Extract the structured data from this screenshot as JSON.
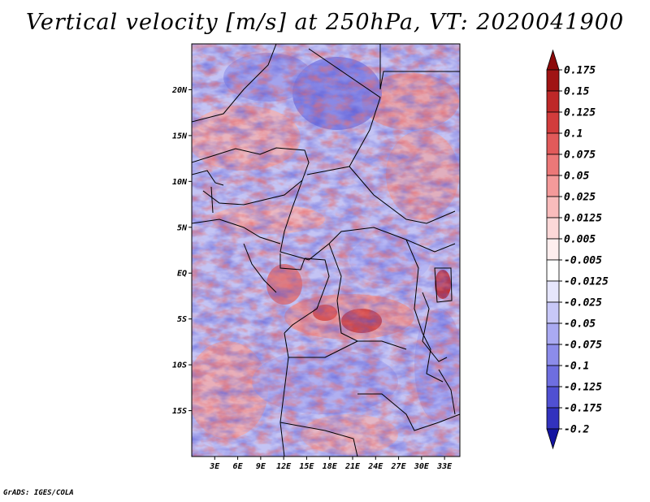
{
  "title": "Vertical velocity [m/s] at 250hPa, VT: 2020041900",
  "footer": "GrADS: IGES/COLA",
  "map": {
    "projection": "lat-lon",
    "lon_range": [
      0,
      35
    ],
    "lat_range": [
      -20,
      25
    ],
    "x_ticks": [
      {
        "value": 3,
        "label": "3E"
      },
      {
        "value": 6,
        "label": "6E"
      },
      {
        "value": 9,
        "label": "9E"
      },
      {
        "value": 12,
        "label": "12E"
      },
      {
        "value": 15,
        "label": "15E"
      },
      {
        "value": 18,
        "label": "18E"
      },
      {
        "value": 21,
        "label": "21E"
      },
      {
        "value": 24,
        "label": "24E"
      },
      {
        "value": 27,
        "label": "27E"
      },
      {
        "value": 30,
        "label": "30E"
      },
      {
        "value": 33,
        "label": "33E"
      }
    ],
    "y_ticks": [
      {
        "value": 20,
        "label": "20N"
      },
      {
        "value": 15,
        "label": "15N"
      },
      {
        "value": 10,
        "label": "10N"
      },
      {
        "value": 5,
        "label": "5N"
      },
      {
        "value": 0,
        "label": "EQ"
      },
      {
        "value": -5,
        "label": "5S"
      },
      {
        "value": -10,
        "label": "10S"
      },
      {
        "value": -15,
        "label": "15S"
      }
    ]
  },
  "colorbar": {
    "levels": [
      {
        "label": "0.175",
        "color": "#a01414"
      },
      {
        "label": "0.15",
        "color": "#be2828"
      },
      {
        "label": "0.125",
        "color": "#d23c3c"
      },
      {
        "label": "0.1",
        "color": "#e15a5a"
      },
      {
        "label": "0.075",
        "color": "#ec7878"
      },
      {
        "label": "0.05",
        "color": "#f49a9a"
      },
      {
        "label": "0.025",
        "color": "#f9bcbc"
      },
      {
        "label": "0.0125",
        "color": "#fcd8d8"
      },
      {
        "label": "0.005",
        "color": "#feeeee"
      },
      {
        "label": "-0.005",
        "color": "#ffffff"
      },
      {
        "label": "-0.0125",
        "color": "#e6e6fc"
      },
      {
        "label": "-0.025",
        "color": "#c8c8f8"
      },
      {
        "label": "-0.05",
        "color": "#aaaaf2"
      },
      {
        "label": "-0.075",
        "color": "#8c8cea"
      },
      {
        "label": "-0.1",
        "color": "#6e6ee0"
      },
      {
        "label": "-0.125",
        "color": "#5050d2"
      },
      {
        "label": "-0.175",
        "color": "#3232be"
      },
      {
        "label": "-0.2",
        "color": "#1e1ea8"
      }
    ],
    "top_color": "#8c0a0a",
    "bottom_color": "#1414a0"
  }
}
